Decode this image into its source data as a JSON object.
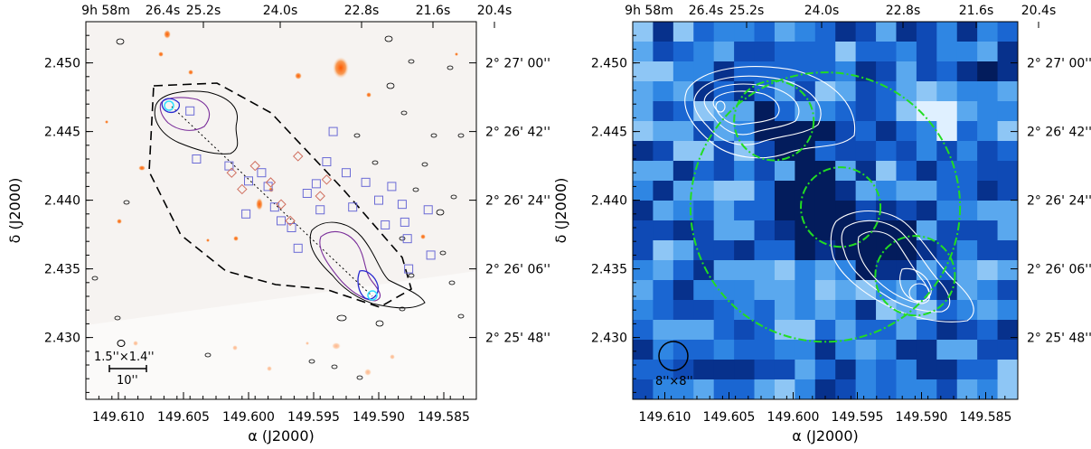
{
  "chart_data": [
    {
      "type": "image",
      "x_range": [
        149.6125,
        149.5825
      ],
      "y_range": [
        2.4255,
        2.453
      ],
      "x_ticks": [
        149.61,
        149.605,
        149.6,
        149.595,
        149.59,
        149.585
      ],
      "x_tick_labels": [
        "149.610",
        "149.605",
        "149.600",
        "149.595",
        "149.590",
        "149.585"
      ],
      "y_ticks": [
        2.43,
        2.435,
        2.44,
        2.445,
        2.45
      ],
      "y_tick_labels": [
        "2.430",
        "2.435",
        "2.440",
        "2.445",
        "2.450"
      ],
      "xlabel": "α (J2000)",
      "ylabel": "δ (J2000)",
      "top_ticks": [
        149.61,
        149.605,
        149.6,
        149.595,
        149.59,
        149.585
      ],
      "top_tick_labels": [
        "9h 58m",
        "26.4s",
        "25.2s",
        "24.0s",
        "22.8s",
        "21.6s",
        "20.4s"
      ],
      "right_ticks": [
        2.43,
        2.435,
        2.44,
        2.445,
        2.45
      ],
      "right_tick_labels": [
        "2° 25' 48''",
        "2° 26' 06''",
        "2° 26' 24''",
        "2° 26' 42''",
        "2° 27' 00''"
      ],
      "beam_label": "1.5''×1.4''",
      "scalebar_label": "10''",
      "blue_squares": [
        [
          149.6045,
          2.4465
        ],
        [
          149.604,
          2.443
        ],
        [
          149.6015,
          2.4425
        ],
        [
          149.6002,
          2.439
        ],
        [
          149.6,
          2.4414
        ],
        [
          149.599,
          2.442
        ],
        [
          149.5985,
          2.441
        ],
        [
          149.598,
          2.4395
        ],
        [
          149.5975,
          2.4385
        ],
        [
          149.5967,
          2.438
        ],
        [
          149.5962,
          2.4365
        ],
        [
          149.5955,
          2.4405
        ],
        [
          149.5948,
          2.4412
        ],
        [
          149.5945,
          2.4393
        ],
        [
          149.594,
          2.4428
        ],
        [
          149.5935,
          2.445
        ],
        [
          149.5925,
          2.442
        ],
        [
          149.591,
          2.4413
        ],
        [
          149.59,
          2.44
        ],
        [
          149.589,
          2.441
        ],
        [
          149.5882,
          2.4397
        ],
        [
          149.588,
          2.4384
        ],
        [
          149.5878,
          2.4372
        ],
        [
          149.5877,
          2.435
        ],
        [
          149.5862,
          2.4393
        ],
        [
          149.5895,
          2.4382
        ],
        [
          149.586,
          2.436
        ],
        [
          149.592,
          2.4395
        ]
      ],
      "red_diamonds": [
        [
          149.6013,
          2.442
        ],
        [
          149.6005,
          2.4408
        ],
        [
          149.5995,
          2.4425
        ],
        [
          149.5983,
          2.4413
        ],
        [
          149.5975,
          2.4397
        ],
        [
          149.5968,
          2.4385
        ],
        [
          149.5962,
          2.4432
        ],
        [
          149.5945,
          2.4403
        ],
        [
          149.594,
          2.4415
        ]
      ]
    },
    {
      "type": "image",
      "x_range": [
        149.6125,
        149.5825
      ],
      "y_range": [
        2.4255,
        2.453
      ],
      "x_ticks": [
        149.61,
        149.605,
        149.6,
        149.595,
        149.59,
        149.585
      ],
      "x_tick_labels": [
        "149.610",
        "149.605",
        "149.600",
        "149.595",
        "149.590",
        "149.585"
      ],
      "y_ticks": [
        2.43,
        2.435,
        2.44,
        2.445,
        2.45
      ],
      "y_tick_labels": [
        "2.430",
        "2.435",
        "2.440",
        "2.445",
        "2.450"
      ],
      "xlabel": "α (J2000)",
      "ylabel": "δ (J2000)",
      "top_tick_labels": [
        "9h 58m",
        "26.4s",
        "25.2s",
        "24.0s",
        "22.8s",
        "21.6s",
        "20.4s"
      ],
      "right_tick_labels": [
        "2° 25' 48''",
        "2° 26' 06''",
        "2° 26' 24''",
        "2° 26' 42''",
        "2° 27' 00''"
      ],
      "beam_label": "8''×8''",
      "big_circle": {
        "ra": 149.5975,
        "dec": 2.4395,
        "radius_deg": 0.0105
      },
      "small_circles": [
        {
          "ra": 149.6015,
          "dec": 2.4458,
          "radius_deg": 0.0031
        },
        {
          "ra": 149.5963,
          "dec": 2.4395,
          "radius_deg": 0.0031
        },
        {
          "ra": 149.5905,
          "dec": 2.4345,
          "radius_deg": 0.0031
        }
      ]
    }
  ]
}
